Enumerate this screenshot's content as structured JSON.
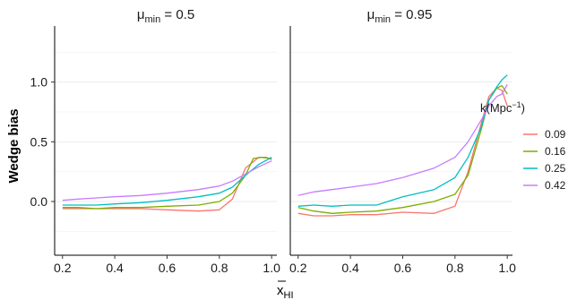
{
  "chart_data": {
    "type": "line",
    "ylabel": "Wedge bias",
    "xlabel": {
      "main": "x",
      "sub": "HI"
    },
    "xlim": [
      0.17,
      1.02
    ],
    "ylim": [
      -0.45,
      1.47
    ],
    "x_ticks": [
      0.2,
      0.4,
      0.6,
      0.8,
      1.0
    ],
    "x_tick_labels": [
      "0.2",
      "0.4",
      "0.6",
      "0.8",
      "1.0"
    ],
    "y_ticks": [
      0.0,
      0.5,
      1.0
    ],
    "y_tick_labels": [
      "0.0",
      "0.5",
      "1.0"
    ],
    "grid": true,
    "legend": {
      "position": "right",
      "title": {
        "main": "k(Mpc",
        "sup": "−1",
        "end": ")"
      },
      "entries": [
        {
          "label": "0.09",
          "color": "#F8766D"
        },
        {
          "label": "0.16",
          "color": "#7CAE00"
        },
        {
          "label": "0.25",
          "color": "#00BFC4"
        },
        {
          "label": "0.42",
          "color": "#C77CFF"
        }
      ]
    },
    "panels": [
      {
        "title": {
          "main": "μ",
          "sub": "min",
          "rest": " = 0.5"
        },
        "series": [
          {
            "color": "#F8766D",
            "x": [
              0.2,
              0.26,
              0.33,
              0.4,
              0.5,
              0.6,
              0.72,
              0.8,
              0.85,
              0.9,
              0.95,
              0.98,
              1.0
            ],
            "y": [
              -0.06,
              -0.06,
              -0.06,
              -0.06,
              -0.06,
              -0.07,
              -0.08,
              -0.07,
              0.02,
              0.28,
              0.37,
              0.37,
              0.35
            ]
          },
          {
            "color": "#7CAE00",
            "x": [
              0.2,
              0.26,
              0.33,
              0.4,
              0.5,
              0.6,
              0.72,
              0.8,
              0.85,
              0.9,
              0.93,
              0.96,
              1.0
            ],
            "y": [
              -0.05,
              -0.05,
              -0.06,
              -0.05,
              -0.05,
              -0.04,
              -0.03,
              0.0,
              0.07,
              0.22,
              0.36,
              0.37,
              0.36
            ]
          },
          {
            "color": "#00BFC4",
            "x": [
              0.2,
              0.26,
              0.33,
              0.4,
              0.5,
              0.6,
              0.72,
              0.8,
              0.85,
              0.9,
              0.95,
              1.0
            ],
            "y": [
              -0.03,
              -0.03,
              -0.03,
              -0.02,
              -0.01,
              0.01,
              0.04,
              0.07,
              0.12,
              0.22,
              0.31,
              0.37
            ]
          },
          {
            "color": "#C77CFF",
            "x": [
              0.2,
              0.26,
              0.33,
              0.4,
              0.5,
              0.6,
              0.72,
              0.8,
              0.85,
              0.9,
              0.95,
              1.0
            ],
            "y": [
              0.01,
              0.02,
              0.03,
              0.04,
              0.05,
              0.07,
              0.1,
              0.13,
              0.17,
              0.23,
              0.29,
              0.34
            ]
          }
        ]
      },
      {
        "title": {
          "main": "μ",
          "sub": "min",
          "rest": " = 0.95"
        },
        "series": [
          {
            "color": "#F8766D",
            "x": [
              0.2,
              0.26,
              0.33,
              0.4,
              0.5,
              0.6,
              0.72,
              0.8,
              0.85,
              0.9,
              0.93,
              0.96,
              0.98,
              1.0
            ],
            "y": [
              -0.1,
              -0.12,
              -0.12,
              -0.11,
              -0.11,
              -0.09,
              -0.1,
              -0.04,
              0.25,
              0.65,
              0.88,
              0.95,
              0.93,
              0.8
            ]
          },
          {
            "color": "#7CAE00",
            "x": [
              0.2,
              0.26,
              0.33,
              0.4,
              0.5,
              0.6,
              0.72,
              0.8,
              0.85,
              0.9,
              0.93,
              0.96,
              0.98,
              1.0
            ],
            "y": [
              -0.05,
              -0.08,
              -0.1,
              -0.09,
              -0.08,
              -0.05,
              0.0,
              0.06,
              0.22,
              0.6,
              0.85,
              0.95,
              0.97,
              0.9
            ]
          },
          {
            "color": "#00BFC4",
            "x": [
              0.2,
              0.26,
              0.33,
              0.4,
              0.5,
              0.6,
              0.72,
              0.8,
              0.85,
              0.9,
              0.93,
              0.96,
              0.98,
              1.0
            ],
            "y": [
              -0.04,
              -0.03,
              -0.04,
              -0.03,
              -0.03,
              0.04,
              0.1,
              0.2,
              0.37,
              0.62,
              0.85,
              0.96,
              1.02,
              1.06
            ]
          },
          {
            "color": "#C77CFF",
            "x": [
              0.2,
              0.26,
              0.33,
              0.4,
              0.5,
              0.6,
              0.72,
              0.8,
              0.85,
              0.9,
              0.93,
              0.96,
              0.98,
              1.0
            ],
            "y": [
              0.05,
              0.08,
              0.1,
              0.12,
              0.15,
              0.2,
              0.28,
              0.37,
              0.5,
              0.68,
              0.8,
              0.88,
              0.9,
              0.98
            ]
          }
        ]
      }
    ]
  }
}
